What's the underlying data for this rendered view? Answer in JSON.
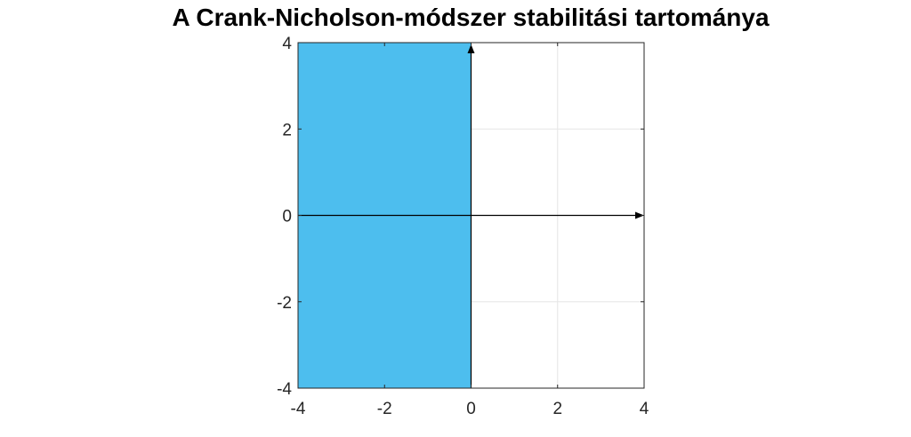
{
  "chart_data": {
    "type": "area",
    "title": "A Crank-Nicholson-módszer stabilitási tartománya",
    "xlabel": "",
    "ylabel": "",
    "xlim": [
      -4,
      4
    ],
    "ylim": [
      -4,
      4
    ],
    "x_ticks": [
      -4,
      -2,
      0,
      2,
      4
    ],
    "y_ticks": [
      -4,
      -2,
      0,
      2,
      4
    ],
    "x_tick_labels": [
      "-4",
      "-2",
      "0",
      "2",
      "4"
    ],
    "y_tick_labels": [
      "-4",
      "-2",
      "0",
      "2",
      "4"
    ],
    "grid": true,
    "region": {
      "x": [
        -4,
        0
      ],
      "y": [
        -4,
        4
      ],
      "color": "#4dbeee"
    },
    "axes_arrows": true,
    "colors": {
      "region": "#4dbeee",
      "grid": "#e6e6e6",
      "axis": "#000000"
    }
  }
}
